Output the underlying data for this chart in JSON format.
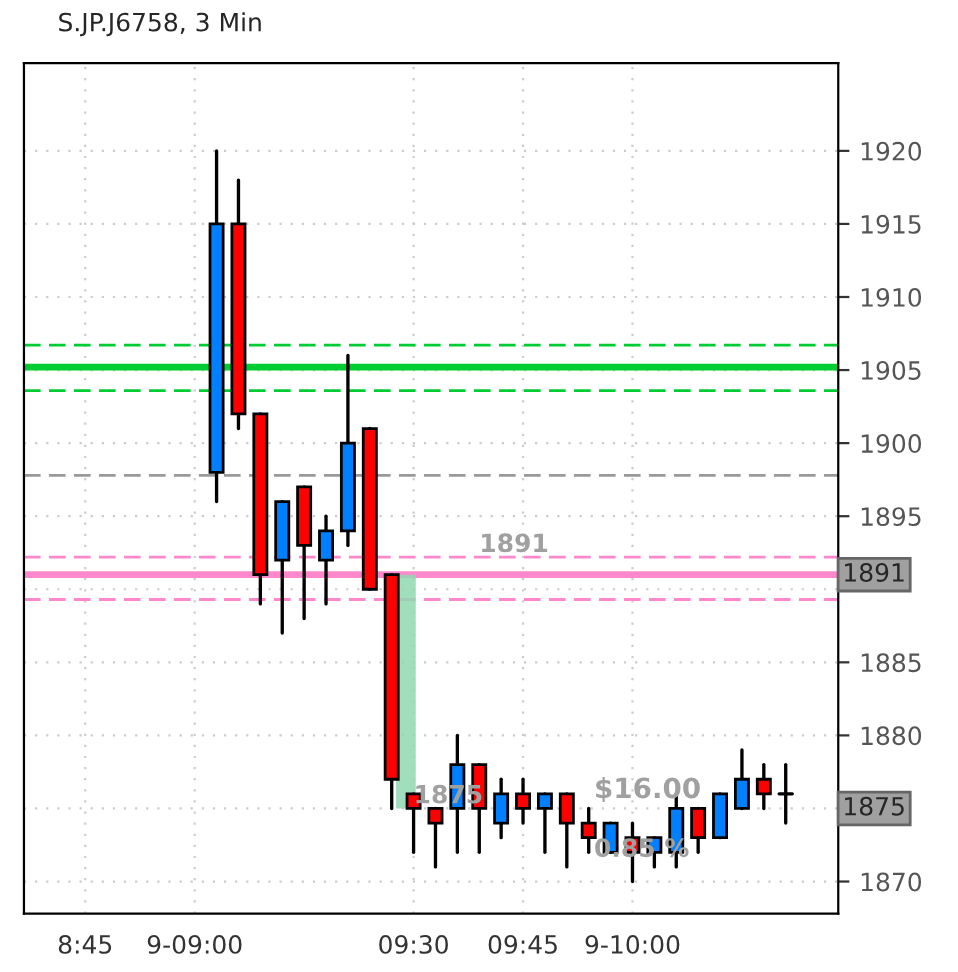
{
  "chart_data": {
    "type": "candlestick",
    "title": "S.JP.J6758, 3 Min",
    "x": [
      9.05,
      9.1,
      9.15,
      9.2,
      9.25,
      9.3,
      9.35,
      9.4,
      9.45,
      9.5,
      9.55,
      9.6,
      9.65,
      9.7,
      9.75,
      9.8,
      9.85,
      9.9,
      9.95,
      10.0,
      10.05,
      10.1,
      10.15,
      10.2,
      10.25,
      10.3,
      10.35
    ],
    "ohlc": [
      [
        1898,
        1920,
        1896,
        1915
      ],
      [
        1915,
        1918,
        1901,
        1902
      ],
      [
        1902,
        1902,
        1889,
        1891
      ],
      [
        1892,
        1896,
        1887,
        1896
      ],
      [
        1897,
        1897,
        1888,
        1893
      ],
      [
        1892,
        1895,
        1889,
        1894
      ],
      [
        1894,
        1906,
        1893,
        1900
      ],
      [
        1901,
        1901,
        1890,
        1890
      ],
      [
        1891,
        1891,
        1875,
        1877
      ],
      [
        1876,
        1876,
        1872,
        1875
      ],
      [
        1875,
        1875,
        1871,
        1874
      ],
      [
        1875,
        1880,
        1872,
        1878
      ],
      [
        1878,
        1878,
        1872,
        1875
      ],
      [
        1874,
        1877,
        1873,
        1876
      ],
      [
        1876,
        1877,
        1874,
        1875
      ],
      [
        1875,
        1876,
        1872,
        1876
      ],
      [
        1876,
        1876,
        1871,
        1874
      ],
      [
        1874,
        1875,
        1872,
        1873
      ],
      [
        1872,
        1874,
        1872,
        1874
      ],
      [
        1873,
        1874,
        1870,
        1872
      ],
      [
        1872,
        1873,
        1871,
        1873
      ],
      [
        1872,
        1876,
        1871,
        1875
      ],
      [
        1875,
        1875,
        1872,
        1873
      ],
      [
        1873,
        1876,
        1873,
        1876
      ],
      [
        1875,
        1879,
        1875,
        1877
      ],
      [
        1877,
        1878,
        1875,
        1876
      ],
      [
        1876,
        1878,
        1874,
        1876
      ]
    ],
    "colors": [
      "#0080ff",
      "#ff0000",
      "#ff0000",
      "#0080ff",
      "#ff0000",
      "#0080ff",
      "#0080ff",
      "#ff0000",
      "#ff0000",
      "#ff0000",
      "#ff0000",
      "#0080ff",
      "#ff0000",
      "#0080ff",
      "#ff0000",
      "#0080ff",
      "#ff0000",
      "#ff0000",
      "#0080ff",
      "#ff0000",
      "#0080ff",
      "#0080ff",
      "#ff0000",
      "#0080ff",
      "#0080ff",
      "#ff0000",
      "#000000"
    ],
    "xlim": [
      8.61,
      10.47
    ],
    "ylim": [
      1867.8,
      1926
    ],
    "xticks": [
      {
        "value": 8.75,
        "label": "8:45"
      },
      {
        "value": 9.0,
        "label": "9-09:00"
      },
      {
        "value": 9.5,
        "label": "09:30"
      },
      {
        "value": 9.75,
        "label": "09:45"
      },
      {
        "value": 10.0,
        "label": "9-10:00"
      }
    ],
    "yticks": [
      1870,
      {
        "value": 1875,
        "label": null
      },
      1880,
      1885,
      {
        "value": 1890,
        "label": null
      },
      1895,
      1900,
      1905,
      1910,
      1915,
      1920
    ],
    "grid": true,
    "ref_lines": [
      {
        "axis": "y",
        "value": 1905.2,
        "color": "#00cc33",
        "line_style": "solid"
      },
      {
        "axis": "y",
        "value": 1906.7,
        "color": "#00cc33",
        "line_style": "dashed"
      },
      {
        "axis": "y",
        "value": 1903.6,
        "color": "#00cc33",
        "line_style": "dashed"
      },
      {
        "axis": "y",
        "value": 1897.8,
        "color": "#999999",
        "line_style": "dashed"
      },
      {
        "axis": "y",
        "value": 1891,
        "color": "#ff88cc",
        "line_style": "solid",
        "label": "1891"
      },
      {
        "axis": "y",
        "value": 1892.2,
        "color": "#ff88cc",
        "line_style": "dashed"
      },
      {
        "axis": "y",
        "value": 1889.3,
        "color": "#ff88cc",
        "line_style": "dashed"
      }
    ],
    "annotations": [
      {
        "text": "1891",
        "x": 9.65,
        "y": 1892.2
      },
      {
        "text": "1875",
        "x": 9.5,
        "y": 1875
      },
      "$16.00",
      "0.85 %",
      {
        "text": "1875",
        "y": 1875
      }
    ]
  }
}
